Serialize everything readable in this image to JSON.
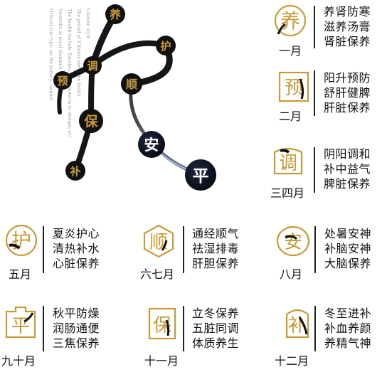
{
  "deco_text": [
    "Chinese style",
    "The period of Chinese medicine health",
    "The health include Sanxiao, mine patterns or designs with",
    "Swastika as royal Bimmon 'e' 'i' with m",
    "Official cup type, on the pottery, lacquer"
  ],
  "graph_nodes": {
    "yang": "养",
    "hu": "护",
    "tiao": "调",
    "yu": "预",
    "shun": "顺",
    "bao": "保",
    "an": "安",
    "bu": "补",
    "ping": "平"
  },
  "months": [
    {
      "id": "m1",
      "glyph": "养",
      "label": "一月",
      "lines": [
        "养肾防寒",
        "滋养汤膏",
        "肾脏保养"
      ]
    },
    {
      "id": "m2",
      "glyph": "预",
      "label": "二月",
      "lines": [
        "阳升预防",
        "舒肝健脾",
        "肝脏保养"
      ]
    },
    {
      "id": "m34",
      "glyph": "调",
      "label": "三四月",
      "lines": [
        "阴阳调和",
        "补中益气",
        "脾脏保养"
      ]
    },
    {
      "id": "m5",
      "glyph": "护",
      "label": "五月",
      "lines": [
        "夏炎护心",
        "清热补水",
        "心脏保养"
      ]
    },
    {
      "id": "m67",
      "glyph": "顺",
      "label": "六七月",
      "lines": [
        "通经顺气",
        "祛湿排毒",
        "肝胆保养"
      ]
    },
    {
      "id": "m8",
      "glyph": "安",
      "label": "八月",
      "lines": [
        "处暑安神",
        "补脑安神",
        "大脑保养"
      ]
    },
    {
      "id": "m910",
      "glyph": "平",
      "label": "九十月",
      "lines": [
        "秋平防燥",
        "润肠通便",
        "三焦保养"
      ]
    },
    {
      "id": "m11",
      "glyph": "保",
      "label": "十一月",
      "lines": [
        "立冬保养",
        "五脏同调",
        "体质养生"
      ]
    },
    {
      "id": "m12",
      "glyph": "补",
      "label": "十二月",
      "lines": [
        "冬至进补",
        "补血养颜",
        "养精气神"
      ]
    }
  ],
  "colors": {
    "gold": "#c99a3a",
    "ink": "#111111",
    "node_dark": "#0c1220",
    "text": "#111111",
    "deco": "#9a9a9a"
  }
}
